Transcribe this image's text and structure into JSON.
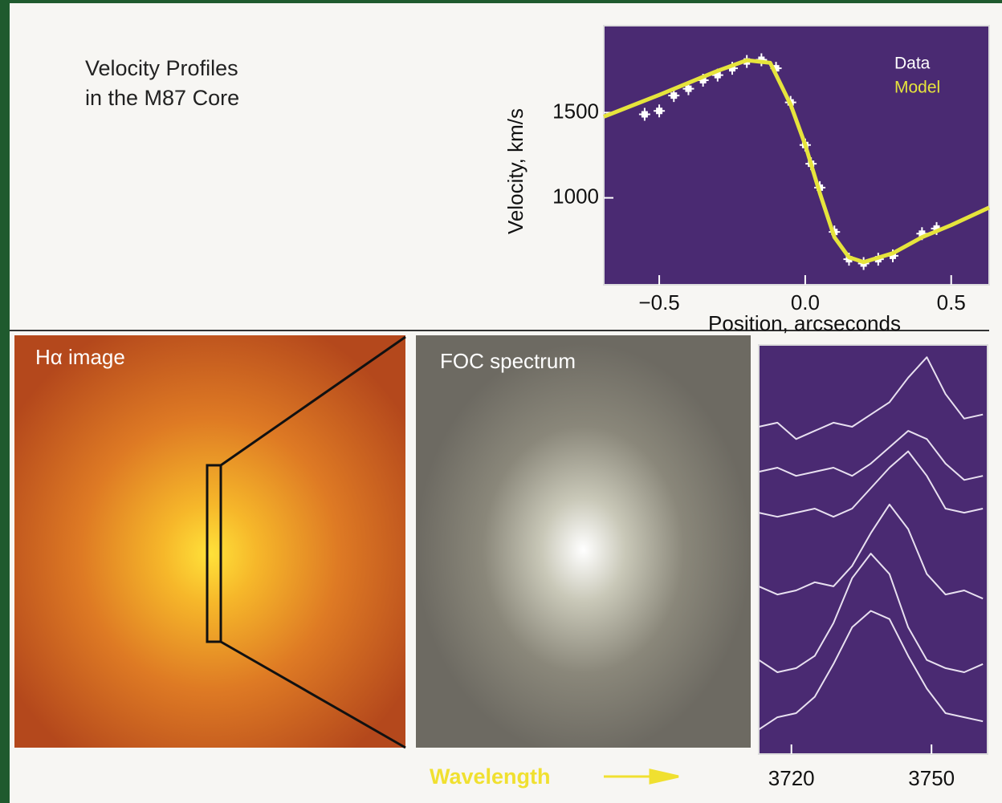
{
  "title": [
    "Velocity Profiles",
    "in the M87 Core"
  ],
  "panels": {
    "ha_image": "Hα image",
    "foc_spectrum": "FOC spectrum",
    "wavelength": "Wavelength"
  },
  "chart_data": [
    {
      "type": "line",
      "xlabel": "Position, arcseconds",
      "ylabel": "Velocity, km/s",
      "xlim": [
        -0.69,
        0.63
      ],
      "ylim": [
        490,
        2010
      ],
      "xticks": [
        {
          "value": -0.5,
          "label": "−0.5"
        },
        {
          "value": 0,
          "label": "0.0"
        },
        0.5
      ],
      "yticks": [
        1000,
        1500
      ],
      "legend": "upper right",
      "background": "#4a2a72",
      "series": [
        {
          "name": "Data",
          "color": "#ffffff",
          "mode": "markers",
          "x": [
            -0.55,
            -0.5,
            -0.45,
            -0.4,
            -0.35,
            -0.3,
            -0.25,
            -0.2,
            -0.15,
            -0.1,
            -0.05,
            0,
            0.02,
            0.05,
            0.1,
            0.15,
            0.2,
            0.25,
            0.3,
            0.4,
            0.45
          ],
          "values": [
            1490,
            1510,
            1600,
            1640,
            1690,
            1720,
            1760,
            1800,
            1810,
            1760,
            1560,
            1310,
            1200,
            1060,
            800,
            640,
            615,
            640,
            660,
            790,
            820
          ]
        },
        {
          "name": "Model",
          "color": "#e6e43c",
          "mode": "line",
          "x": [
            -0.69,
            -0.5,
            -0.3,
            -0.2,
            -0.12,
            -0.05,
            0,
            0.05,
            0.1,
            0.15,
            0.2,
            0.3,
            0.4,
            0.5,
            0.63
          ],
          "values": [
            1476,
            1604,
            1745,
            1807,
            1792,
            1547,
            1311,
            1028,
            769,
            651,
            623,
            675,
            769,
            840,
            943
          ]
        }
      ]
    },
    {
      "type": "line",
      "xlim": [
        3713,
        3762
      ],
      "ylim": [
        0,
        10
      ],
      "xticks": [
        3720,
        3750
      ],
      "background": "#4a2a72",
      "x": [
        3713,
        3717,
        3721,
        3725,
        3729,
        3733,
        3737,
        3741,
        3745,
        3749,
        3753,
        3757,
        3761
      ],
      "series": [
        {
          "color": "#e8e0f0",
          "values": [
            8.0,
            8.1,
            7.7,
            7.9,
            8.1,
            8.0,
            8.3,
            8.6,
            9.2,
            9.7,
            8.8,
            8.2,
            8.3
          ]
        },
        {
          "color": "#e8e0f0",
          "values": [
            6.9,
            7.0,
            6.8,
            6.9,
            7.0,
            6.8,
            7.1,
            7.5,
            7.9,
            7.7,
            7.1,
            6.7,
            6.8
          ]
        },
        {
          "color": "#e8e0f0",
          "values": [
            5.9,
            5.8,
            5.9,
            6.0,
            5.8,
            6.0,
            6.5,
            7.0,
            7.4,
            6.8,
            6.0,
            5.9,
            6.0
          ]
        },
        {
          "color": "#e8e0f0",
          "values": [
            4.1,
            3.9,
            4.0,
            4.2,
            4.1,
            4.6,
            5.4,
            6.1,
            5.5,
            4.4,
            3.9,
            4.0,
            3.8
          ]
        },
        {
          "color": "#e8e0f0",
          "values": [
            2.3,
            2.0,
            2.1,
            2.4,
            3.2,
            4.3,
            4.9,
            4.4,
            3.1,
            2.3,
            2.1,
            2.0,
            2.2
          ]
        },
        {
          "color": "#e8e0f0",
          "values": [
            0.6,
            0.9,
            1.0,
            1.4,
            2.2,
            3.1,
            3.5,
            3.3,
            2.4,
            1.6,
            1.0,
            0.9,
            0.8
          ]
        }
      ]
    }
  ]
}
